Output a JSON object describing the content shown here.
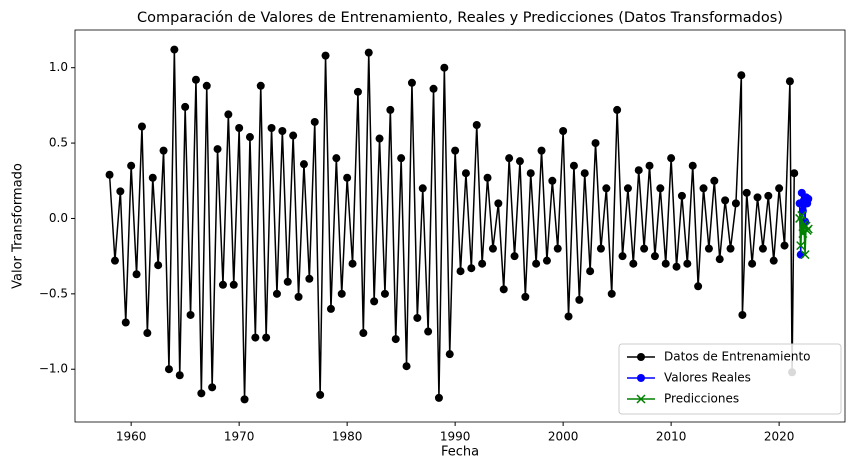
{
  "chart_data": {
    "type": "line",
    "title": "Comparación de Valores de Entrenamiento, Reales y Predicciones (Datos Transformados)",
    "x_label": "Fecha",
    "y_label": "Valor Transformado",
    "xlim": [
      1954.8,
      2026.1
    ],
    "ylim": [
      -1.35,
      1.25
    ],
    "xticks": [
      1960,
      1970,
      1980,
      1990,
      2000,
      2010,
      2020
    ],
    "yticks": [
      {
        "value": -1,
        "label": "−1.0"
      },
      {
        "value": -0.5,
        "label": "−0.5"
      },
      {
        "value": 0,
        "label": "0.0"
      },
      {
        "value": 0.5,
        "label": "0.5"
      },
      {
        "value": 1,
        "label": "1.0"
      }
    ],
    "legend": "lower right",
    "series": [
      {
        "name": "Datos de Entrenamiento",
        "color": "#000000",
        "marker": "o",
        "x": [
          1958.0,
          1958.5,
          1959.0,
          1959.5,
          1960.0,
          1960.5,
          1961.0,
          1961.5,
          1962.0,
          1962.5,
          1963.0,
          1963.5,
          1964.0,
          1964.5,
          1965.0,
          1965.5,
          1966.0,
          1966.5,
          1967.0,
          1967.5,
          1968.0,
          1968.5,
          1969.0,
          1969.5,
          1970.0,
          1970.5,
          1971.0,
          1971.5,
          1972.0,
          1972.5,
          1973.0,
          1973.5,
          1974.0,
          1974.5,
          1975.0,
          1975.5,
          1976.0,
          1976.5,
          1977.0,
          1977.5,
          1978.0,
          1978.5,
          1979.0,
          1979.5,
          1980.0,
          1980.5,
          1981.0,
          1981.5,
          1982.0,
          1982.5,
          1983.0,
          1983.5,
          1984.0,
          1984.5,
          1985.0,
          1985.5,
          1986.0,
          1986.5,
          1987.0,
          1987.5,
          1988.0,
          1988.5,
          1989.0,
          1989.5,
          1990.0,
          1990.5,
          1991.0,
          1991.5,
          1992.0,
          1992.5,
          1993.0,
          1993.5,
          1994.0,
          1994.5,
          1995.0,
          1995.5,
          1996.0,
          1996.5,
          1997.0,
          1997.5,
          1998.0,
          1998.5,
          1999.0,
          1999.5,
          2000.0,
          2000.5,
          2001.0,
          2001.5,
          2002.0,
          2002.5,
          2003.0,
          2003.5,
          2004.0,
          2004.5,
          2005.0,
          2005.5,
          2006.0,
          2006.5,
          2007.0,
          2007.5,
          2008.0,
          2008.5,
          2009.0,
          2009.5,
          2010.0,
          2010.5,
          2011.0,
          2011.5,
          2012.0,
          2012.5,
          2013.0,
          2013.5,
          2014.0,
          2014.5,
          2015.0,
          2015.5,
          2016.0,
          2016.5,
          2016.6,
          2017.0,
          2017.5,
          2018.0,
          2018.5,
          2019.0,
          2019.5,
          2020.0,
          2020.5,
          2021.0,
          2021.2,
          2021.4
        ],
        "values": [
          0.29,
          -0.28,
          0.18,
          -0.69,
          0.35,
          -0.37,
          0.61,
          -0.76,
          0.27,
          -0.31,
          0.45,
          -1.0,
          1.12,
          -1.04,
          0.74,
          -0.64,
          0.92,
          -1.16,
          0.88,
          -1.12,
          0.46,
          -0.44,
          0.69,
          -0.44,
          0.6,
          -1.2,
          0.54,
          -0.79,
          0.88,
          -0.79,
          0.6,
          -0.5,
          0.58,
          -0.42,
          0.55,
          -0.52,
          0.36,
          -0.4,
          0.64,
          -1.17,
          1.08,
          -0.6,
          0.4,
          -0.5,
          0.27,
          -0.3,
          0.84,
          -0.76,
          1.1,
          -0.55,
          0.53,
          -0.5,
          0.72,
          -0.8,
          0.4,
          -0.98,
          0.9,
          -0.66,
          0.2,
          -0.75,
          0.86,
          -1.19,
          1.0,
          -0.9,
          0.45,
          -0.35,
          0.3,
          -0.33,
          0.62,
          -0.3,
          0.27,
          -0.2,
          0.1,
          -0.47,
          0.4,
          -0.25,
          0.38,
          -0.52,
          0.3,
          -0.3,
          0.45,
          -0.28,
          0.25,
          -0.2,
          0.58,
          -0.65,
          0.35,
          -0.54,
          0.3,
          -0.35,
          0.5,
          -0.2,
          0.2,
          -0.5,
          0.72,
          -0.25,
          0.2,
          -0.3,
          0.32,
          -0.2,
          0.35,
          -0.25,
          0.2,
          -0.3,
          0.4,
          -0.32,
          0.15,
          -0.3,
          0.35,
          -0.45,
          0.2,
          -0.2,
          0.25,
          -0.27,
          0.12,
          -0.2,
          0.1,
          0.95,
          -0.64,
          0.17,
          -0.3,
          0.14,
          -0.2,
          0.15,
          -0.28,
          0.2,
          -0.18,
          0.91,
          -1.02,
          0.3
        ]
      },
      {
        "name": "Valores Reales",
        "color": "#0000ff",
        "marker": "o",
        "x": [
          2021.9,
          2022.0,
          2022.1,
          2022.2,
          2022.3,
          2022.4,
          2022.5,
          2022.6,
          2022.7
        ],
        "values": [
          0.1,
          -0.24,
          0.17,
          0.05,
          0.12,
          -0.02,
          0.14,
          0.1,
          0.13
        ]
      },
      {
        "name": "Predicciones",
        "color": "#008000",
        "marker": "x",
        "x": [
          2021.9,
          2022.0,
          2022.1,
          2022.2,
          2022.3,
          2022.4,
          2022.5,
          2022.6,
          2022.7
        ],
        "values": [
          0.0,
          -0.18,
          0.02,
          -0.1,
          -0.04,
          -0.24,
          -0.05,
          -0.08,
          -0.07
        ]
      }
    ]
  }
}
